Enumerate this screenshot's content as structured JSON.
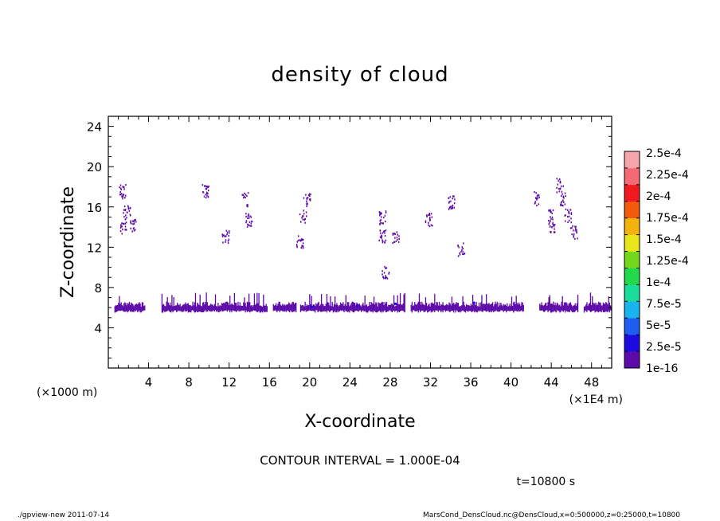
{
  "chart_data": {
    "type": "heatmap",
    "title": "density of cloud",
    "xlabel": "X-coordinate",
    "ylabel": "Z-coordinate",
    "x_scale_note_left": "(×1000 m)",
    "x_scale_note_right": "(×1E4 m)",
    "xlim": [
      0,
      50
    ],
    "ylim": [
      0,
      25
    ],
    "x_ticks": [
      "4",
      "8",
      "12",
      "16",
      "20",
      "24",
      "28",
      "32",
      "36",
      "40",
      "44",
      "48"
    ],
    "y_ticks": [
      "4",
      "8",
      "12",
      "16",
      "20",
      "24"
    ],
    "colorbar": {
      "labels": [
        "1e-16",
        "2.5e-5",
        "5e-5",
        "7.5e-5",
        "1e-4",
        "1.25e-4",
        "1.5e-4",
        "1.75e-4",
        "2e-4",
        "2.25e-4",
        "2.5e-4"
      ],
      "colors": [
        "#5c0aa8",
        "#1c0ae0",
        "#1d5ef0",
        "#19b3ee",
        "#19dd9b",
        "#22d94a",
        "#73d81c",
        "#e8e619",
        "#f3b30c",
        "#f45a0c",
        "#f1181e",
        "#f46a74",
        "#f4a4aa"
      ]
    },
    "contour_interval": "CONTOUR INTERVAL = 1.000E-04",
    "time_label": "t=10800  s",
    "cloud_band": {
      "z_range": [
        5.5,
        6.6
      ],
      "gaps_x": [
        [
          3.6,
          5.2
        ],
        [
          15.8,
          16.3
        ],
        [
          18.6,
          19.0
        ],
        [
          29.4,
          30.0
        ],
        [
          41.2,
          42.8
        ],
        [
          46.6,
          47.2
        ]
      ]
    },
    "cloud_patches": [
      {
        "x": 1.4,
        "z": 17.6
      },
      {
        "x": 1.8,
        "z": 15.5
      },
      {
        "x": 1.4,
        "z": 14.0
      },
      {
        "x": 2.4,
        "z": 14.2
      },
      {
        "x": 9.6,
        "z": 17.6
      },
      {
        "x": 11.6,
        "z": 13.2
      },
      {
        "x": 13.5,
        "z": 16.8
      },
      {
        "x": 13.9,
        "z": 14.8
      },
      {
        "x": 19.3,
        "z": 15.2
      },
      {
        "x": 19.7,
        "z": 16.8
      },
      {
        "x": 19.0,
        "z": 12.5
      },
      {
        "x": 27.2,
        "z": 13.2
      },
      {
        "x": 28.5,
        "z": 12.9
      },
      {
        "x": 27.5,
        "z": 9.6
      },
      {
        "x": 27.2,
        "z": 15.0
      },
      {
        "x": 31.8,
        "z": 14.8
      },
      {
        "x": 34.0,
        "z": 16.5
      },
      {
        "x": 35.0,
        "z": 11.9
      },
      {
        "x": 42.5,
        "z": 16.9
      },
      {
        "x": 44.8,
        "z": 18.2
      },
      {
        "x": 45.1,
        "z": 16.9
      },
      {
        "x": 44.0,
        "z": 14.0
      },
      {
        "x": 45.6,
        "z": 15.2
      },
      {
        "x": 46.2,
        "z": 13.5
      },
      {
        "x": 43.8,
        "z": 15.2
      }
    ]
  },
  "footer": {
    "left": "./gpview-new   2011-07-14",
    "right": "MarsCond_DensCloud.nc@DensCloud,x=0:500000,z=0:25000,t=10800"
  }
}
